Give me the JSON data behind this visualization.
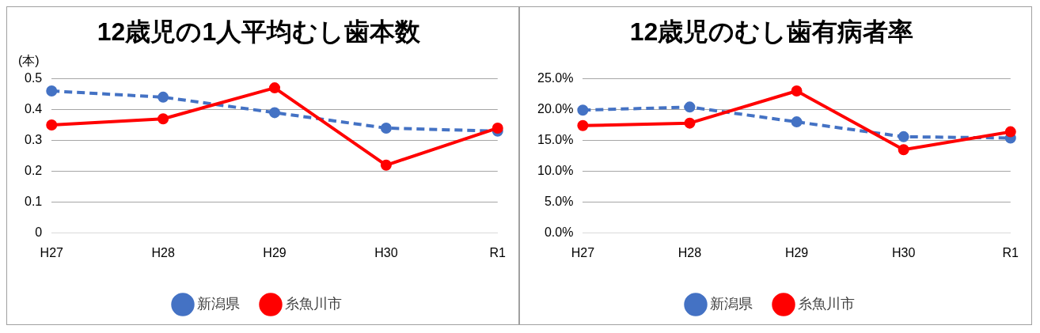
{
  "chart_data": [
    {
      "type": "line",
      "title": "12歳児の1人平均むし歯本数",
      "ylabel": "(本)",
      "categories": [
        "H27",
        "H28",
        "H29",
        "H30",
        "R1"
      ],
      "series": [
        {
          "name": "新潟県",
          "color": "#4472c4",
          "line_style": "dashed",
          "values": [
            0.46,
            0.44,
            0.39,
            0.34,
            0.33
          ]
        },
        {
          "name": "糸魚川市",
          "color": "#ff0000",
          "line_style": "solid",
          "values": [
            0.35,
            0.37,
            0.47,
            0.22,
            0.34
          ]
        }
      ],
      "ylim": [
        0,
        0.5
      ],
      "yticks": [
        0,
        0.1,
        0.2,
        0.3,
        0.4,
        0.5
      ],
      "grid": "y",
      "legend": "bottom",
      "marker": "circle"
    },
    {
      "type": "line",
      "title": "12歳児のむし歯有病者率",
      "categories": [
        "H27",
        "H28",
        "H29",
        "H30",
        "R1"
      ],
      "series": [
        {
          "name": "新潟県",
          "color": "#4472c4",
          "line_style": "dashed",
          "values": [
            19.9,
            20.4,
            18.0,
            15.6,
            15.4
          ]
        },
        {
          "name": "糸魚川市",
          "color": "#ff0000",
          "line_style": "solid",
          "values": [
            17.4,
            17.8,
            23.0,
            13.5,
            16.4
          ]
        }
      ],
      "ylim": [
        0,
        25
      ],
      "yticks": [
        {
          "value": 0,
          "label": "0.0%"
        },
        {
          "value": 5,
          "label": "5.0%"
        },
        {
          "value": 10,
          "label": "10.0%"
        },
        {
          "value": 15,
          "label": "15.0%"
        },
        {
          "value": 20,
          "label": "20.0%"
        },
        {
          "value": 25,
          "label": "25.0%"
        }
      ],
      "grid": "y",
      "legend": "bottom",
      "marker": "circle"
    }
  ]
}
